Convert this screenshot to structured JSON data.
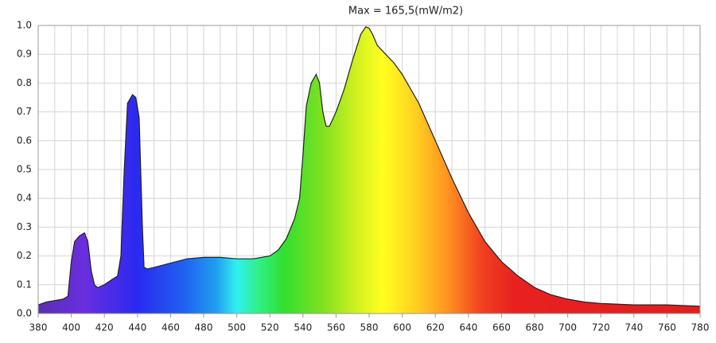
{
  "chart_data": {
    "type": "area",
    "title": "Max = 165,5(mW/m2)",
    "x": [
      380,
      385,
      390,
      395,
      398,
      400,
      402,
      405,
      408,
      410,
      412,
      414,
      416,
      420,
      425,
      428,
      430,
      432,
      434,
      437,
      439,
      441,
      443,
      444,
      446,
      450,
      460,
      470,
      480,
      490,
      500,
      510,
      520,
      525,
      530,
      535,
      538,
      540,
      542,
      545,
      548,
      550,
      552,
      554,
      556,
      560,
      565,
      570,
      575,
      578,
      580,
      582,
      585,
      590,
      595,
      600,
      610,
      620,
      630,
      640,
      650,
      660,
      670,
      680,
      690,
      700,
      710,
      720,
      740,
      760,
      780
    ],
    "values": [
      0.03,
      0.04,
      0.045,
      0.05,
      0.06,
      0.18,
      0.25,
      0.27,
      0.28,
      0.25,
      0.15,
      0.1,
      0.09,
      0.1,
      0.12,
      0.13,
      0.2,
      0.5,
      0.73,
      0.76,
      0.75,
      0.68,
      0.3,
      0.16,
      0.155,
      0.16,
      0.175,
      0.19,
      0.195,
      0.195,
      0.19,
      0.19,
      0.2,
      0.22,
      0.26,
      0.33,
      0.4,
      0.55,
      0.72,
      0.8,
      0.83,
      0.8,
      0.7,
      0.65,
      0.65,
      0.7,
      0.78,
      0.88,
      0.97,
      0.995,
      0.99,
      0.97,
      0.93,
      0.9,
      0.87,
      0.83,
      0.73,
      0.6,
      0.47,
      0.35,
      0.25,
      0.18,
      0.13,
      0.09,
      0.065,
      0.05,
      0.04,
      0.035,
      0.03,
      0.03,
      0.025
    ],
    "xlim": [
      380,
      780
    ],
    "xticks": [
      380,
      400,
      420,
      440,
      460,
      480,
      500,
      520,
      540,
      560,
      580,
      600,
      620,
      640,
      660,
      680,
      700,
      720,
      740,
      760,
      780
    ],
    "xminorticks": [
      390,
      410,
      430,
      450,
      470,
      490,
      510,
      530,
      550,
      570,
      590,
      610,
      630,
      650,
      670,
      690,
      710,
      730,
      750,
      770
    ],
    "ylim": [
      0,
      1
    ],
    "yticks": [
      {
        "value": 0,
        "label": "0.0"
      },
      0.1,
      0.2,
      0.3,
      0.4,
      0.5,
      0.6,
      0.7,
      0.8,
      0.9,
      {
        "value": 1,
        "label": "1.0"
      }
    ],
    "grid": true,
    "line_color": "#222222"
  }
}
